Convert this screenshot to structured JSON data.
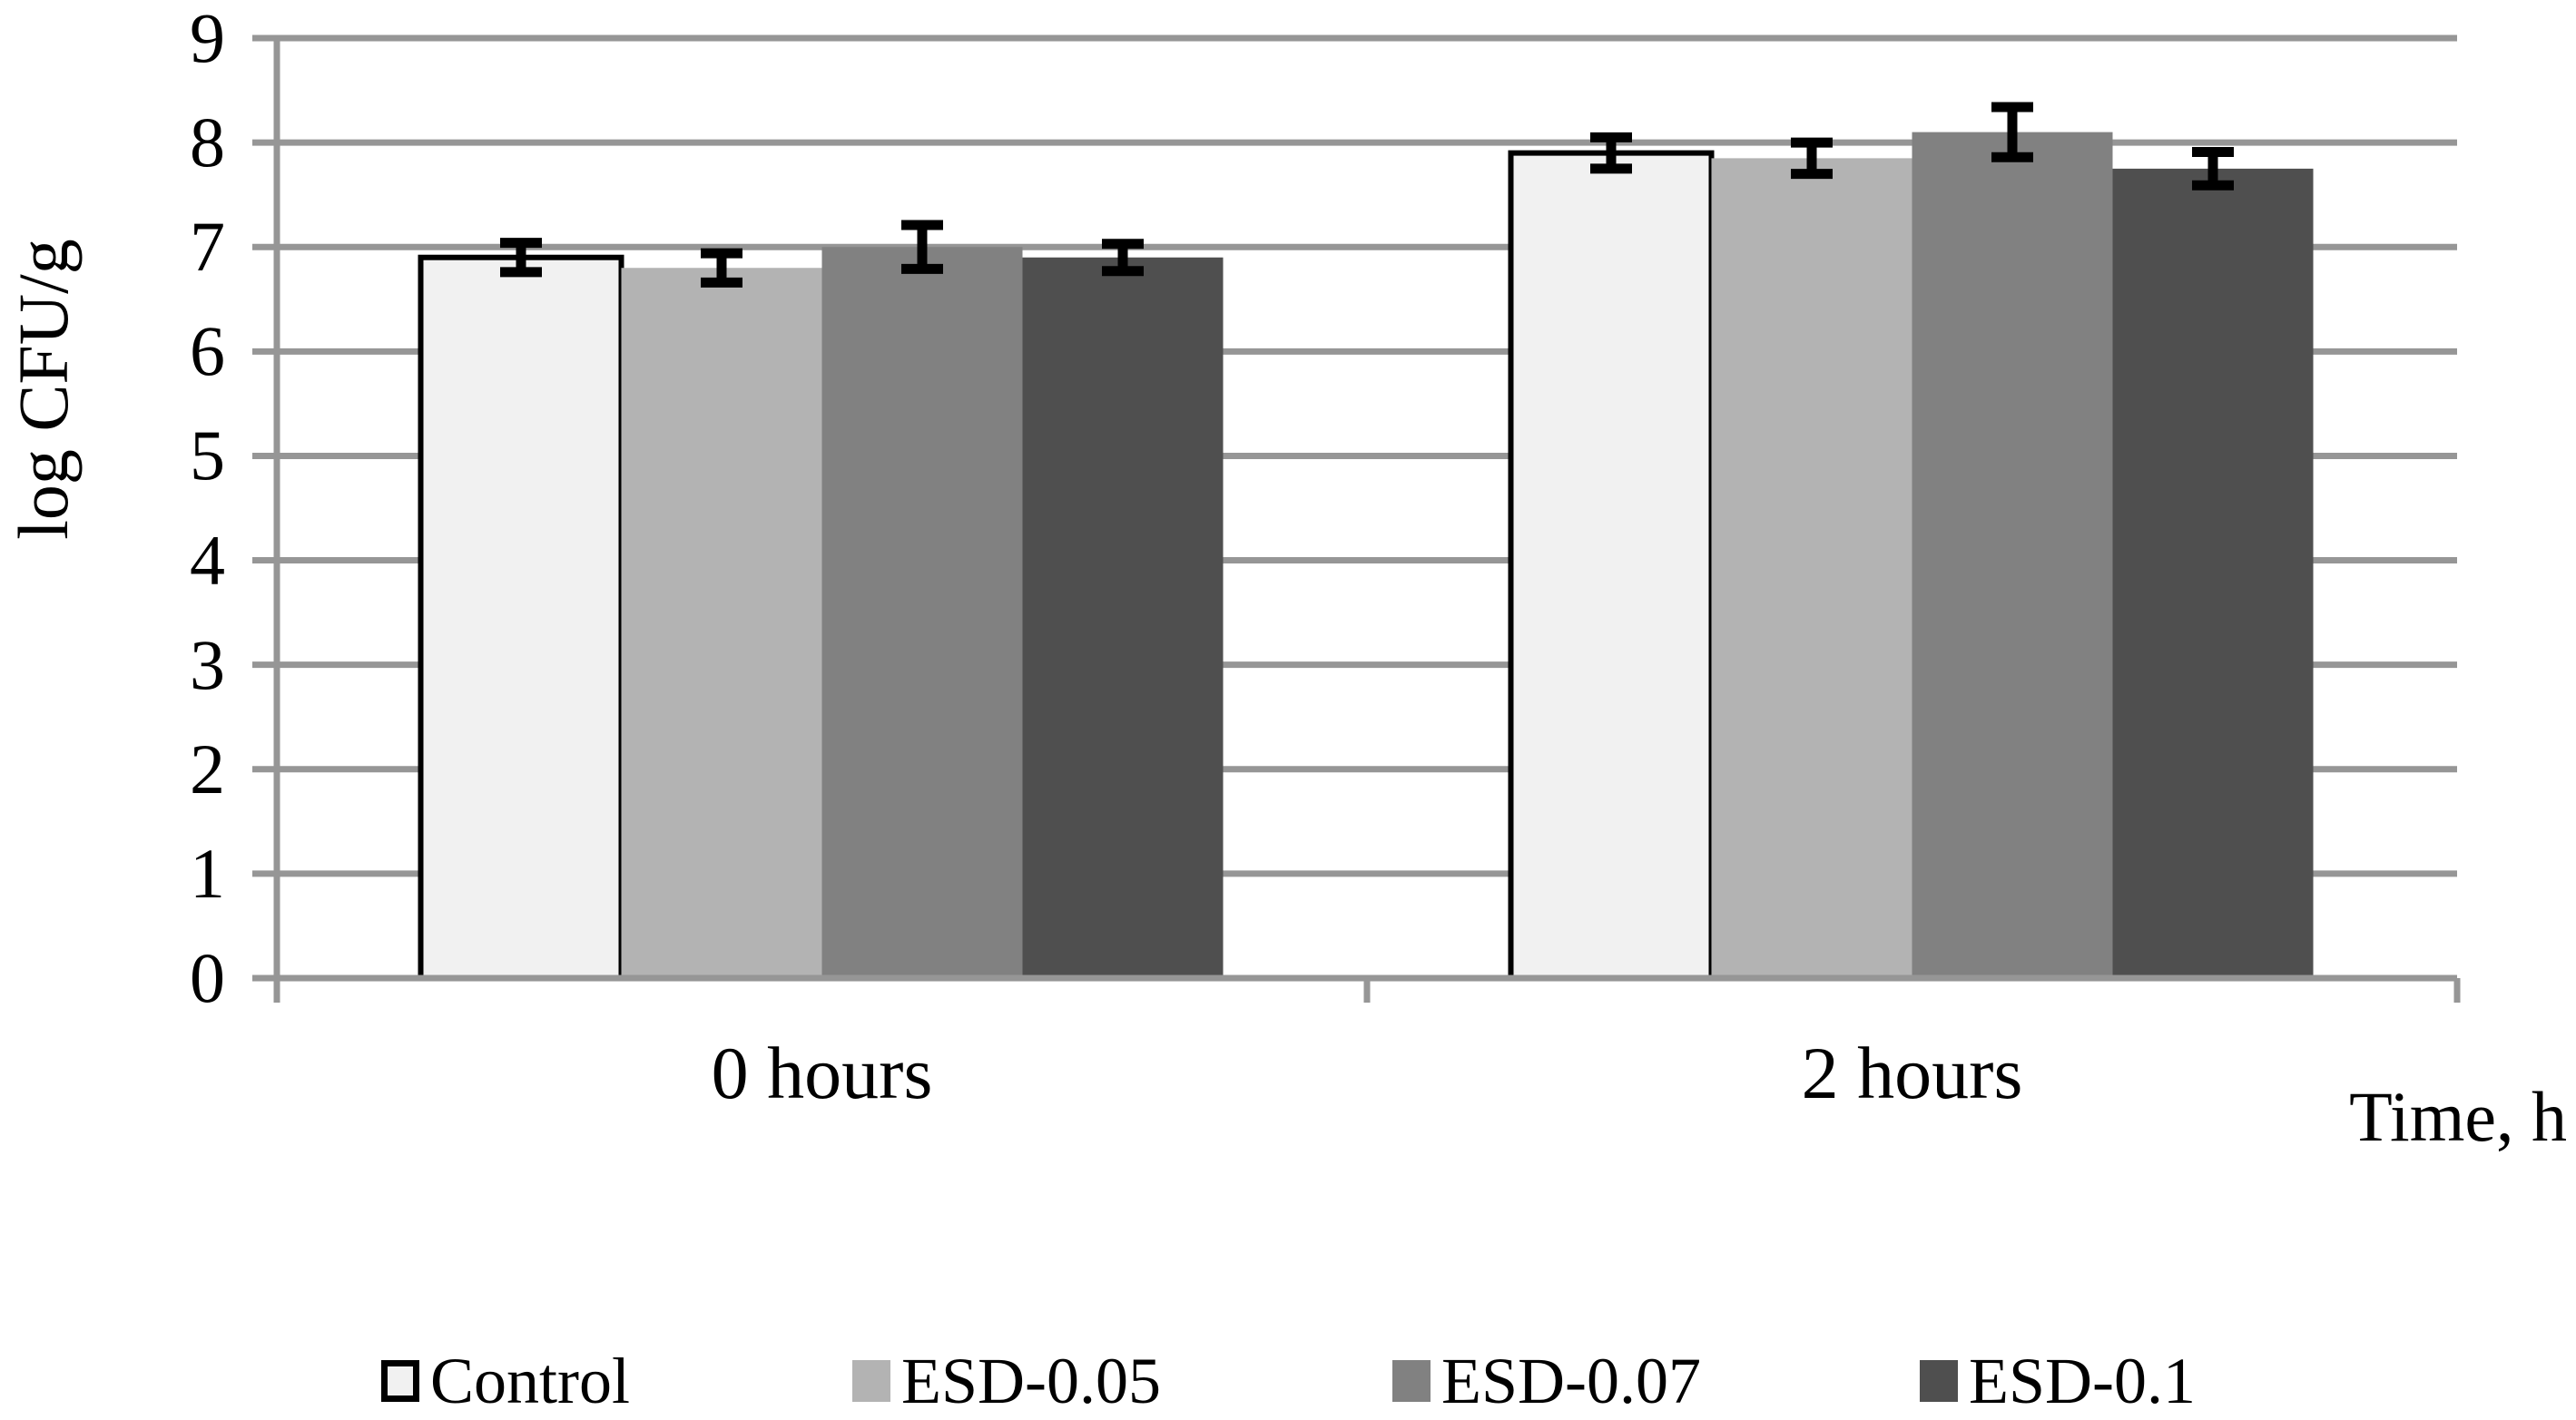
{
  "chart_data": {
    "type": "bar",
    "title": "",
    "ylabel": "log CFU/g",
    "xlabel": "Time, h",
    "categories": [
      "0 hours",
      "2 hours"
    ],
    "series": [
      {
        "name": "Control",
        "fill": "#f1f1f1",
        "border": "#000000",
        "values": [
          6.9,
          7.9
        ],
        "errors": [
          0.14,
          0.15
        ]
      },
      {
        "name": "ESD-0.05",
        "fill": "#b3b3b3",
        "border": null,
        "values": [
          6.8,
          7.85
        ],
        "errors": [
          0.14,
          0.15
        ]
      },
      {
        "name": "ESD-0.07",
        "fill": "#818181",
        "border": null,
        "values": [
          7.0,
          8.1
        ],
        "errors": [
          0.21,
          0.24
        ]
      },
      {
        "name": "ESD-0.1",
        "fill": "#4f4f4f",
        "border": null,
        "values": [
          6.9,
          7.75
        ],
        "errors": [
          0.13,
          0.16
        ]
      }
    ],
    "ylim": [
      0,
      9
    ],
    "yticks": [
      9,
      8,
      7,
      6,
      5,
      4,
      3,
      2,
      1,
      0
    ],
    "grid": true,
    "error_bars": true,
    "legend_position": "bottom",
    "colors": {
      "grid": "#969696",
      "axis": "#969696",
      "error_bar": "#000000",
      "text": "#000000",
      "background": "#ffffff"
    }
  }
}
